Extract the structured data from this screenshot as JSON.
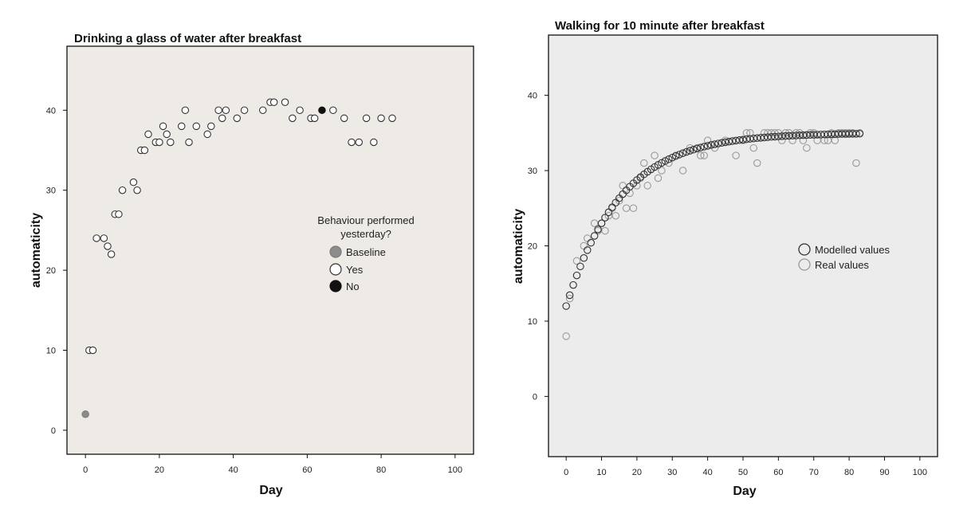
{
  "chart_data": [
    {
      "type": "scatter",
      "title": "Drinking a glass of water after breakfast",
      "xlabel": "Day",
      "ylabel": "automaticity",
      "xlim": [
        -5,
        105
      ],
      "ylim": [
        -3,
        48
      ],
      "xticks": [
        0,
        20,
        40,
        60,
        80,
        100
      ],
      "yticks": [
        0,
        10,
        20,
        30,
        40
      ],
      "legend_title": "Behaviour performed yesterday?",
      "legend": [
        {
          "label": "Baseline",
          "fill": "#8c8c8c",
          "stroke": "#7a7a7a"
        },
        {
          "label": "Yes",
          "fill": "#ffffff",
          "stroke": "#333333"
        },
        {
          "label": "No",
          "fill": "#111111",
          "stroke": "#111111"
        }
      ],
      "series": [
        {
          "name": "Baseline",
          "points": [
            [
              0,
              2
            ]
          ]
        },
        {
          "name": "Yes",
          "points": [
            [
              1,
              10
            ],
            [
              2,
              10
            ],
            [
              3,
              24
            ],
            [
              5,
              24
            ],
            [
              6,
              23
            ],
            [
              7,
              22
            ],
            [
              8,
              27
            ],
            [
              9,
              27
            ],
            [
              10,
              30
            ],
            [
              13,
              31
            ],
            [
              14,
              30
            ],
            [
              15,
              35
            ],
            [
              16,
              35
            ],
            [
              17,
              37
            ],
            [
              19,
              36
            ],
            [
              20,
              36
            ],
            [
              21,
              38
            ],
            [
              22,
              37
            ],
            [
              23,
              36
            ],
            [
              26,
              38
            ],
            [
              27,
              40
            ],
            [
              28,
              36
            ],
            [
              30,
              38
            ],
            [
              33,
              37
            ],
            [
              34,
              38
            ],
            [
              36,
              40
            ],
            [
              37,
              39
            ],
            [
              38,
              40
            ],
            [
              41,
              39
            ],
            [
              43,
              40
            ],
            [
              48,
              40
            ],
            [
              50,
              41
            ],
            [
              51,
              41
            ],
            [
              54,
              41
            ],
            [
              56,
              39
            ],
            [
              58,
              40
            ],
            [
              61,
              39
            ],
            [
              62,
              39
            ],
            [
              67,
              40
            ],
            [
              70,
              39
            ],
            [
              72,
              36
            ],
            [
              74,
              36
            ],
            [
              76,
              39
            ],
            [
              78,
              36
            ],
            [
              80,
              39
            ],
            [
              83,
              39
            ]
          ]
        },
        {
          "name": "No",
          "points": [
            [
              64,
              40
            ]
          ]
        }
      ]
    },
    {
      "type": "scatter",
      "title": "Walking for 10 minute after breakfast",
      "xlabel": "Day",
      "ylabel": "automaticity",
      "xlim": [
        -5,
        105
      ],
      "ylim": [
        -8,
        48
      ],
      "xticks": [
        0,
        10,
        20,
        30,
        40,
        50,
        60,
        70,
        80,
        90,
        100
      ],
      "yticks": [
        0,
        10,
        20,
        30,
        40
      ],
      "legend": [
        {
          "label": "Modelled values",
          "stroke": "#333333"
        },
        {
          "label": "Real values",
          "stroke": "#9a9a9a"
        }
      ],
      "series": [
        {
          "name": "Modelled values",
          "model": "asymptotic",
          "asymptote": 35,
          "start": 12,
          "rate": 0.065,
          "x_range": [
            0,
            83
          ]
        },
        {
          "name": "Real values",
          "points": [
            [
              0,
              8
            ],
            [
              1,
              13
            ],
            [
              3,
              18
            ],
            [
              5,
              20
            ],
            [
              6,
              21
            ],
            [
              8,
              23
            ],
            [
              9,
              22
            ],
            [
              10,
              23
            ],
            [
              11,
              22
            ],
            [
              12,
              24
            ],
            [
              13,
              25
            ],
            [
              14,
              24
            ],
            [
              15,
              26
            ],
            [
              16,
              28
            ],
            [
              17,
              25
            ],
            [
              18,
              27
            ],
            [
              19,
              25
            ],
            [
              20,
              28
            ],
            [
              21,
              29
            ],
            [
              22,
              31
            ],
            [
              23,
              28
            ],
            [
              25,
              32
            ],
            [
              26,
              29
            ],
            [
              27,
              30
            ],
            [
              29,
              31
            ],
            [
              31,
              32
            ],
            [
              33,
              30
            ],
            [
              35,
              33
            ],
            [
              37,
              33
            ],
            [
              38,
              32
            ],
            [
              39,
              32
            ],
            [
              40,
              34
            ],
            [
              42,
              33
            ],
            [
              45,
              34
            ],
            [
              48,
              32
            ],
            [
              50,
              34
            ],
            [
              51,
              35
            ],
            [
              52,
              35
            ],
            [
              53,
              33
            ],
            [
              54,
              31
            ],
            [
              56,
              35
            ],
            [
              57,
              35
            ],
            [
              58,
              35
            ],
            [
              59,
              35
            ],
            [
              60,
              35
            ],
            [
              61,
              34
            ],
            [
              62,
              35
            ],
            [
              63,
              35
            ],
            [
              64,
              34
            ],
            [
              65,
              35
            ],
            [
              66,
              35
            ],
            [
              67,
              34
            ],
            [
              68,
              33
            ],
            [
              69,
              35
            ],
            [
              70,
              35
            ],
            [
              71,
              34
            ],
            [
              73,
              34
            ],
            [
              74,
              34
            ],
            [
              75,
              35
            ],
            [
              76,
              34
            ],
            [
              77,
              35
            ],
            [
              78,
              35
            ],
            [
              79,
              35
            ],
            [
              80,
              35
            ],
            [
              81,
              35
            ],
            [
              82,
              31
            ],
            [
              83,
              35
            ]
          ]
        }
      ]
    }
  ]
}
